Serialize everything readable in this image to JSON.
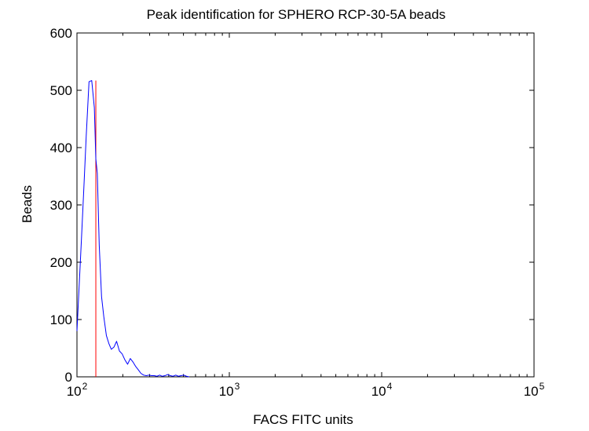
{
  "chart_data": {
    "type": "line",
    "title": "Peak identification for SPHERO RCP-30-5A beads",
    "xlabel": "FACS FITC units",
    "ylabel": "Beads",
    "xscale": "log",
    "xlim": [
      100,
      100000
    ],
    "ylim": [
      0,
      600
    ],
    "x_tick_labels": [
      {
        "base": "10",
        "exp": "2",
        "value": 100
      },
      {
        "base": "10",
        "exp": "3",
        "value": 1000
      },
      {
        "base": "10",
        "exp": "4",
        "value": 10000
      },
      {
        "base": "10",
        "exp": "5",
        "value": 100000
      }
    ],
    "y_ticks": [
      0,
      100,
      200,
      300,
      400,
      500,
      600
    ],
    "y_tick_labels": [
      "0",
      "100",
      "200",
      "300",
      "400",
      "500",
      "600"
    ],
    "grid": false,
    "box": true,
    "series": [
      {
        "color": "#0000ff",
        "x": [
          100,
          103,
          107,
          111,
          115,
          120,
          125,
          130,
          133,
          136,
          140,
          145,
          150,
          156,
          162,
          168,
          175,
          182,
          190,
          198,
          206,
          215,
          224,
          233,
          243,
          253,
          263,
          274,
          285,
          297,
          309,
          322,
          335,
          349,
          363,
          378,
          394,
          410,
          427,
          445,
          463,
          482,
          502,
          523,
          545
        ],
        "y": [
          80,
          150,
          240,
          330,
          420,
          515,
          517,
          470,
          380,
          355,
          230,
          140,
          105,
          72,
          58,
          48,
          52,
          62,
          45,
          40,
          30,
          22,
          32,
          26,
          18,
          12,
          6,
          3,
          2,
          3,
          2,
          2,
          1,
          3,
          1,
          2,
          4,
          2,
          1,
          3,
          1,
          2,
          3,
          1,
          0
        ]
      }
    ],
    "marker_lines": [
      {
        "x": 133,
        "y": 517,
        "color": "#ff0000"
      }
    ]
  }
}
